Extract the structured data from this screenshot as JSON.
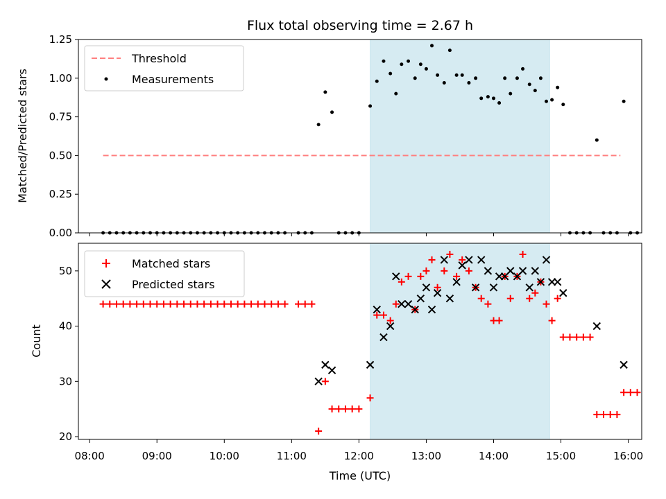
{
  "chart_data": {
    "type": "scatter",
    "title": "Flux total observing time = 2.67 h",
    "xlabel": "Time (UTC)",
    "x_ticks": [
      "08:00",
      "09:00",
      "10:00",
      "11:00",
      "12:00",
      "13:00",
      "14:00",
      "15:00",
      "16:00"
    ],
    "xlim": [
      "07:50",
      "16:12"
    ],
    "shaded_span": {
      "start": "12:10",
      "end": "14:50",
      "color": "#add8e6"
    },
    "panels": [
      {
        "ylabel": "Matched/Predicted stars",
        "ylim": [
          0,
          1.25
        ],
        "y_ticks": [
          "0.00",
          "0.25",
          "0.50",
          "0.75",
          "1.00",
          "1.25"
        ],
        "legend_position": "upper left",
        "series": [
          {
            "name": "Threshold",
            "style": "dashed-line",
            "color": "#ff7f7f",
            "points": [
              [
                "08:12",
                0.5
              ],
              [
                "15:53",
                0.5
              ]
            ]
          },
          {
            "name": "Measurements",
            "style": "dot",
            "color": "#000000",
            "points": [
              [
                "08:12",
                0
              ],
              [
                "08:18",
                0
              ],
              [
                "08:24",
                0
              ],
              [
                "08:30",
                0
              ],
              [
                "08:36",
                0
              ],
              [
                "08:42",
                0
              ],
              [
                "08:48",
                0
              ],
              [
                "08:54",
                0
              ],
              [
                "09:00",
                0
              ],
              [
                "09:06",
                0
              ],
              [
                "09:12",
                0
              ],
              [
                "09:18",
                0
              ],
              [
                "09:24",
                0
              ],
              [
                "09:30",
                0
              ],
              [
                "09:36",
                0
              ],
              [
                "09:42",
                0
              ],
              [
                "09:48",
                0
              ],
              [
                "09:54",
                0
              ],
              [
                "10:00",
                0
              ],
              [
                "10:06",
                0
              ],
              [
                "10:12",
                0
              ],
              [
                "10:18",
                0
              ],
              [
                "10:24",
                0
              ],
              [
                "10:30",
                0
              ],
              [
                "10:36",
                0
              ],
              [
                "10:42",
                0
              ],
              [
                "10:48",
                0
              ],
              [
                "10:54",
                0
              ],
              [
                "11:06",
                0
              ],
              [
                "11:12",
                0
              ],
              [
                "11:18",
                0
              ],
              [
                "11:24",
                0.7
              ],
              [
                "11:30",
                0.91
              ],
              [
                "11:36",
                0.78
              ],
              [
                "11:42",
                0
              ],
              [
                "11:48",
                0
              ],
              [
                "11:54",
                0
              ],
              [
                "12:00",
                0
              ],
              [
                "12:10",
                0.82
              ],
              [
                "12:16",
                0.98
              ],
              [
                "12:22",
                1.11
              ],
              [
                "12:28",
                1.03
              ],
              [
                "12:33",
                0.9
              ],
              [
                "12:38",
                1.09
              ],
              [
                "12:44",
                1.11
              ],
              [
                "12:50",
                1.0
              ],
              [
                "12:55",
                1.09
              ],
              [
                "13:00",
                1.06
              ],
              [
                "13:05",
                1.21
              ],
              [
                "13:10",
                1.02
              ],
              [
                "13:16",
                0.97
              ],
              [
                "13:21",
                1.18
              ],
              [
                "13:27",
                1.02
              ],
              [
                "13:32",
                1.02
              ],
              [
                "13:38",
                0.97
              ],
              [
                "13:44",
                1.0
              ],
              [
                "13:49",
                0.87
              ],
              [
                "13:55",
                0.88
              ],
              [
                "14:00",
                0.87
              ],
              [
                "14:05",
                0.84
              ],
              [
                "14:10",
                1.0
              ],
              [
                "14:15",
                0.9
              ],
              [
                "14:21",
                1.0
              ],
              [
                "14:26",
                1.06
              ],
              [
                "14:32",
                0.96
              ],
              [
                "14:37",
                0.92
              ],
              [
                "14:42",
                1.0
              ],
              [
                "14:47",
                0.85
              ],
              [
                "14:52",
                0.86
              ],
              [
                "14:57",
                0.94
              ],
              [
                "15:02",
                0.83
              ],
              [
                "15:08",
                0
              ],
              [
                "15:14",
                0
              ],
              [
                "15:20",
                0
              ],
              [
                "15:26",
                0
              ],
              [
                "15:32",
                0.6
              ],
              [
                "15:38",
                0
              ],
              [
                "15:44",
                0
              ],
              [
                "15:50",
                0
              ],
              [
                "15:56",
                0.85
              ],
              [
                "16:02",
                0
              ],
              [
                "16:08",
                0
              ]
            ]
          }
        ]
      },
      {
        "ylabel": "Count",
        "ylim": [
          19.5,
          55
        ],
        "y_ticks": [
          "20",
          "30",
          "40",
          "50"
        ],
        "legend_position": "upper left",
        "series": [
          {
            "name": "Matched stars",
            "style": "plus",
            "color": "#ff0000",
            "points": [
              [
                "08:12",
                44
              ],
              [
                "08:18",
                44
              ],
              [
                "08:24",
                44
              ],
              [
                "08:30",
                44
              ],
              [
                "08:36",
                44
              ],
              [
                "08:42",
                44
              ],
              [
                "08:48",
                44
              ],
              [
                "08:54",
                44
              ],
              [
                "09:00",
                44
              ],
              [
                "09:06",
                44
              ],
              [
                "09:12",
                44
              ],
              [
                "09:18",
                44
              ],
              [
                "09:24",
                44
              ],
              [
                "09:30",
                44
              ],
              [
                "09:36",
                44
              ],
              [
                "09:42",
                44
              ],
              [
                "09:48",
                44
              ],
              [
                "09:54",
                44
              ],
              [
                "10:00",
                44
              ],
              [
                "10:06",
                44
              ],
              [
                "10:12",
                44
              ],
              [
                "10:18",
                44
              ],
              [
                "10:24",
                44
              ],
              [
                "10:30",
                44
              ],
              [
                "10:36",
                44
              ],
              [
                "10:42",
                44
              ],
              [
                "10:48",
                44
              ],
              [
                "10:54",
                44
              ],
              [
                "11:06",
                44
              ],
              [
                "11:12",
                44
              ],
              [
                "11:18",
                44
              ],
              [
                "11:24",
                21
              ],
              [
                "11:30",
                30
              ],
              [
                "11:36",
                25
              ],
              [
                "11:42",
                25
              ],
              [
                "11:48",
                25
              ],
              [
                "11:54",
                25
              ],
              [
                "12:00",
                25
              ],
              [
                "12:10",
                27
              ],
              [
                "12:16",
                42
              ],
              [
                "12:22",
                42
              ],
              [
                "12:28",
                41
              ],
              [
                "12:33",
                44
              ],
              [
                "12:38",
                48
              ],
              [
                "12:44",
                49
              ],
              [
                "12:50",
                43
              ],
              [
                "12:55",
                49
              ],
              [
                "13:00",
                50
              ],
              [
                "13:05",
                52
              ],
              [
                "13:10",
                47
              ],
              [
                "13:16",
                50
              ],
              [
                "13:21",
                53
              ],
              [
                "13:27",
                49
              ],
              [
                "13:32",
                52
              ],
              [
                "13:38",
                50
              ],
              [
                "13:44",
                47
              ],
              [
                "13:49",
                45
              ],
              [
                "13:55",
                44
              ],
              [
                "14:00",
                41
              ],
              [
                "14:05",
                41
              ],
              [
                "14:10",
                49
              ],
              [
                "14:15",
                45
              ],
              [
                "14:21",
                49
              ],
              [
                "14:26",
                53
              ],
              [
                "14:32",
                45
              ],
              [
                "14:37",
                46
              ],
              [
                "14:42",
                48
              ],
              [
                "14:47",
                44
              ],
              [
                "14:52",
                41
              ],
              [
                "14:57",
                45
              ],
              [
                "15:02",
                38
              ],
              [
                "15:08",
                38
              ],
              [
                "15:14",
                38
              ],
              [
                "15:20",
                38
              ],
              [
                "15:26",
                38
              ],
              [
                "15:32",
                24
              ],
              [
                "15:38",
                24
              ],
              [
                "15:44",
                24
              ],
              [
                "15:50",
                24
              ],
              [
                "15:56",
                28
              ],
              [
                "16:02",
                28
              ],
              [
                "16:08",
                28
              ]
            ]
          },
          {
            "name": "Predicted stars",
            "style": "x",
            "color": "#000000",
            "points": [
              [
                "11:24",
                30
              ],
              [
                "11:30",
                33
              ],
              [
                "11:36",
                32
              ],
              [
                "12:10",
                33
              ],
              [
                "12:16",
                43
              ],
              [
                "12:22",
                38
              ],
              [
                "12:28",
                40
              ],
              [
                "12:33",
                49
              ],
              [
                "12:38",
                44
              ],
              [
                "12:44",
                44
              ],
              [
                "12:50",
                43
              ],
              [
                "12:55",
                45
              ],
              [
                "13:00",
                47
              ],
              [
                "13:05",
                43
              ],
              [
                "13:10",
                46
              ],
              [
                "13:16",
                52
              ],
              [
                "13:21",
                45
              ],
              [
                "13:27",
                48
              ],
              [
                "13:32",
                51
              ],
              [
                "13:38",
                52
              ],
              [
                "13:44",
                47
              ],
              [
                "13:49",
                52
              ],
              [
                "13:55",
                50
              ],
              [
                "14:00",
                47
              ],
              [
                "14:05",
                49
              ],
              [
                "14:10",
                49
              ],
              [
                "14:15",
                50
              ],
              [
                "14:21",
                49
              ],
              [
                "14:26",
                50
              ],
              [
                "14:32",
                47
              ],
              [
                "14:37",
                50
              ],
              [
                "14:42",
                48
              ],
              [
                "14:47",
                52
              ],
              [
                "14:52",
                48
              ],
              [
                "14:57",
                48
              ],
              [
                "15:02",
                46
              ],
              [
                "15:32",
                40
              ],
              [
                "15:56",
                33
              ]
            ]
          }
        ]
      }
    ]
  }
}
